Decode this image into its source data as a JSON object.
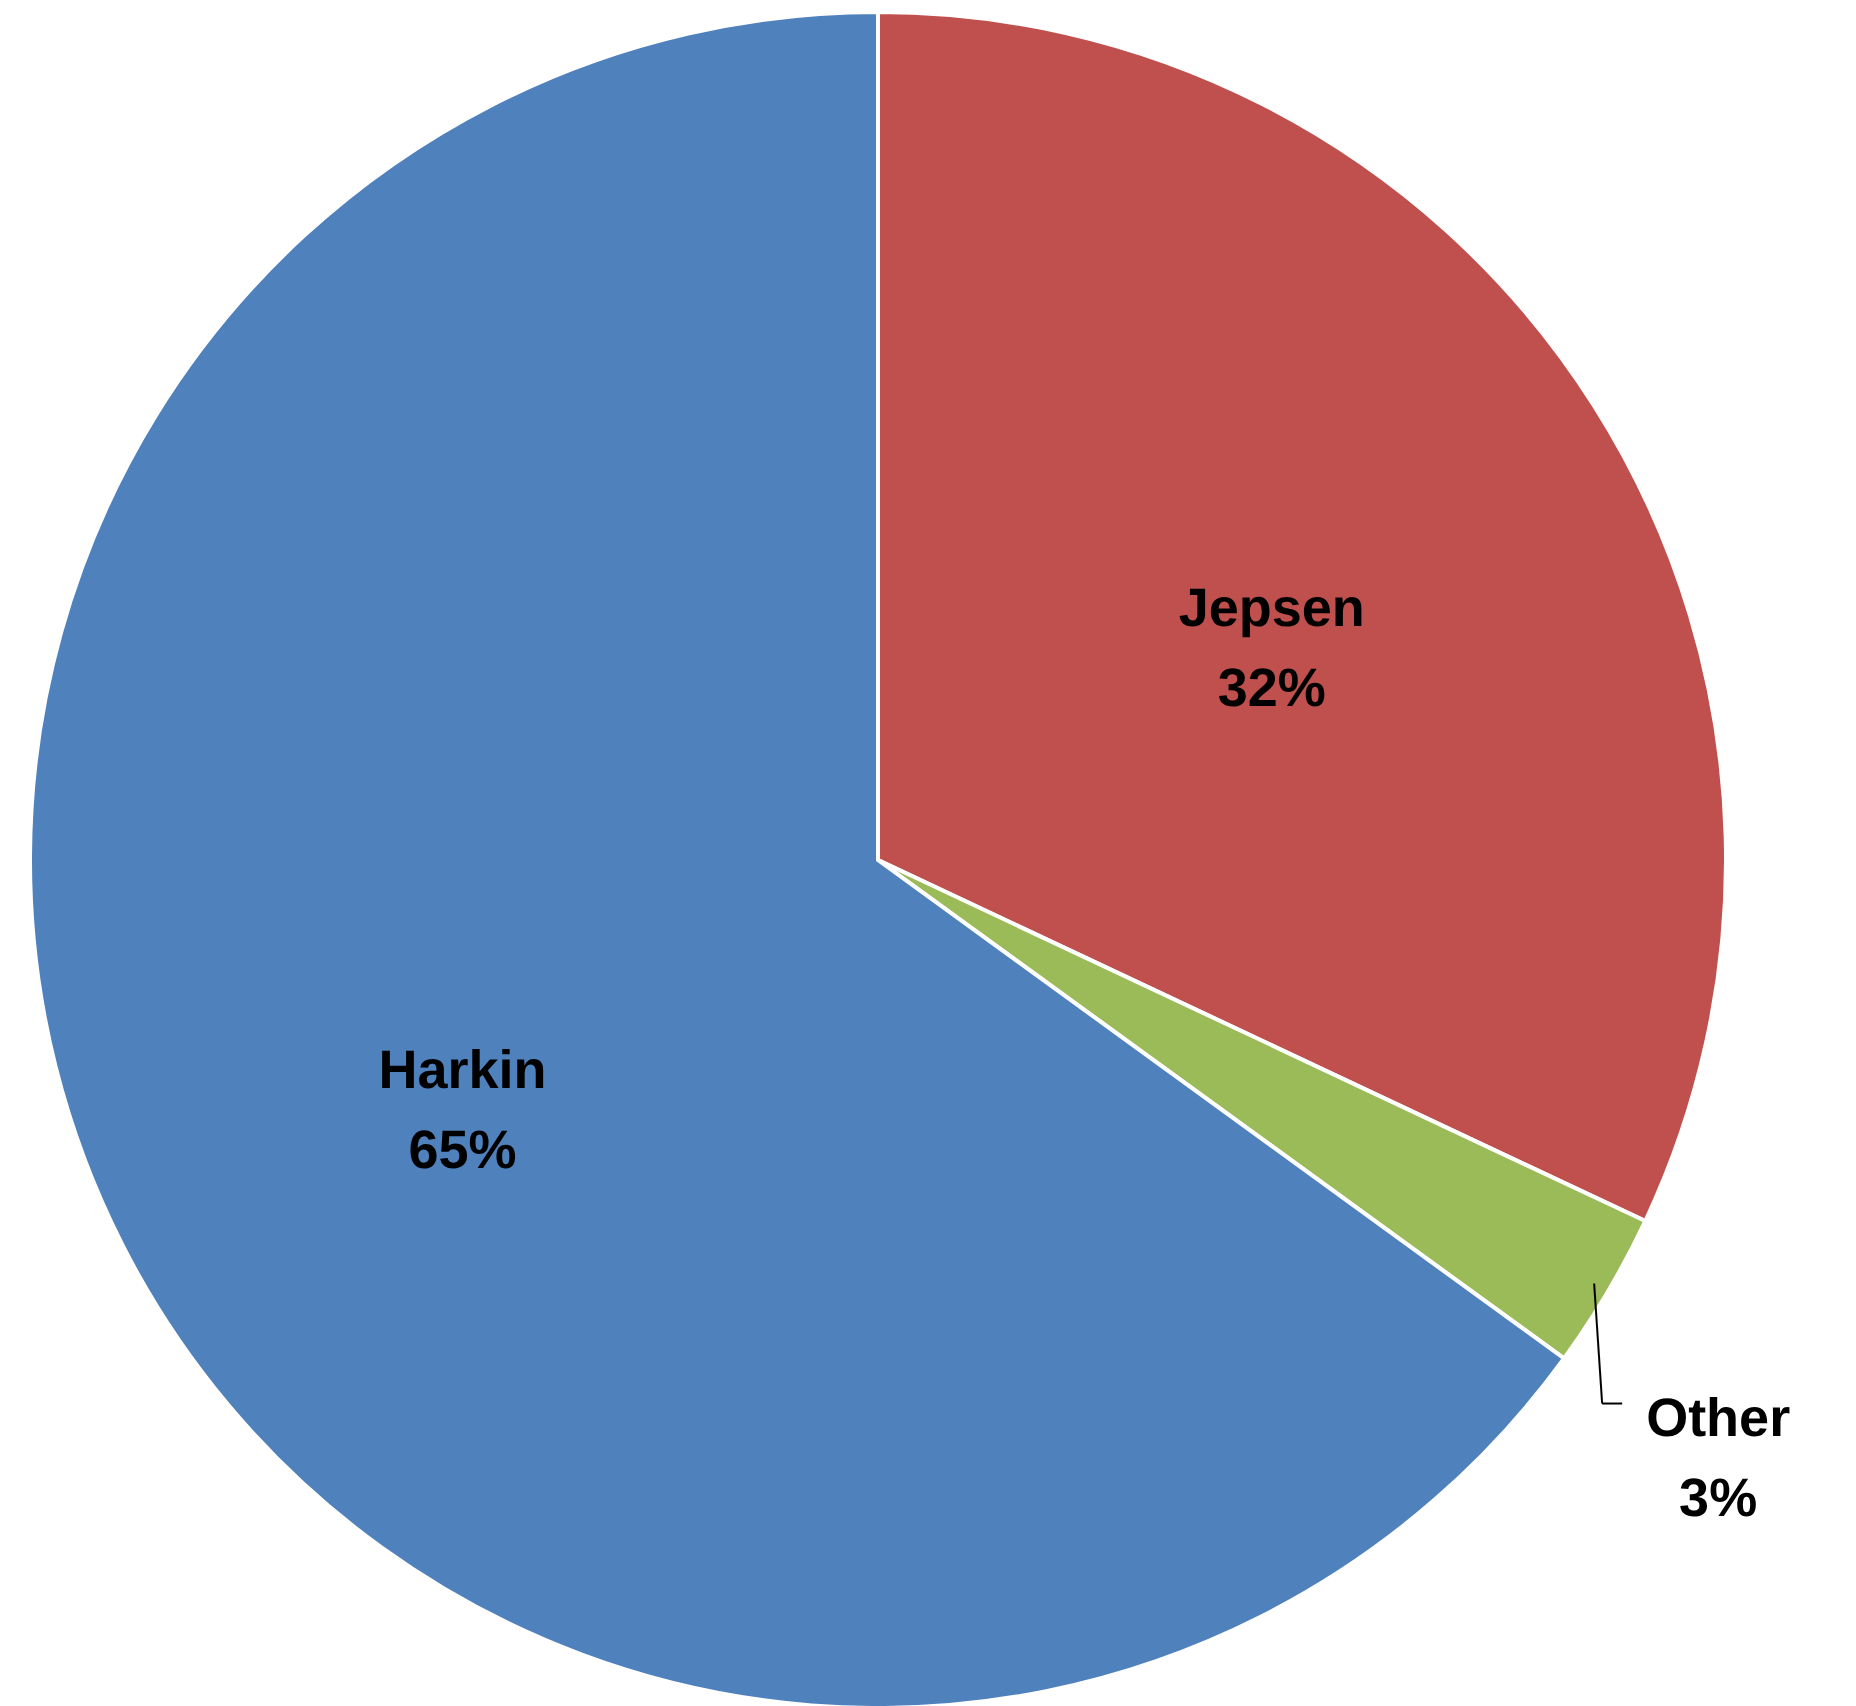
{
  "chart_data": {
    "type": "pie",
    "categories": [
      "Jepsen",
      "Other",
      "Harkin"
    ],
    "values": [
      32,
      3,
      65
    ],
    "value_labels": [
      "32%",
      "3%",
      "65%"
    ],
    "colors": [
      "#c0504d",
      "#9bbb59",
      "#4f81bd"
    ]
  }
}
